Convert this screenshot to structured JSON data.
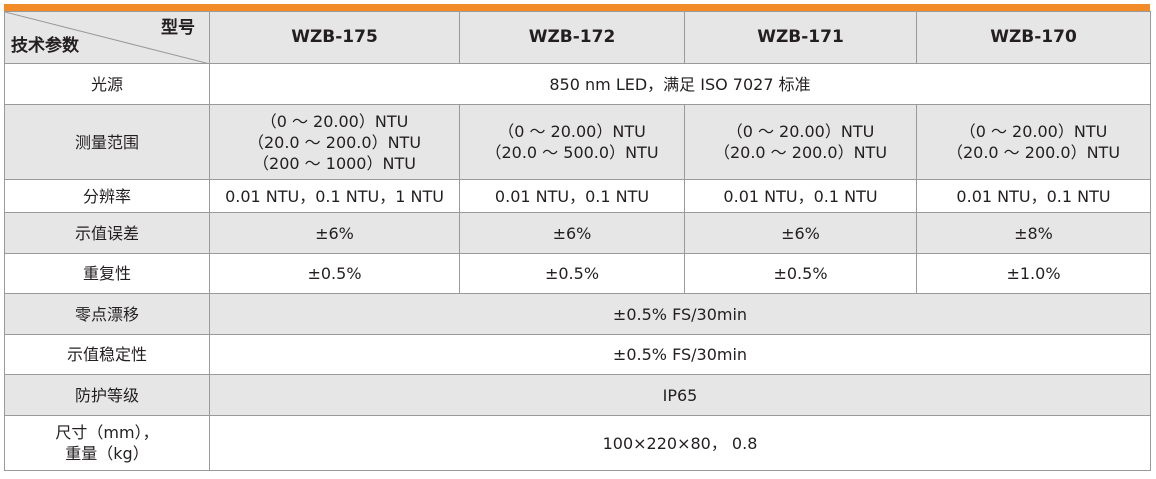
{
  "header": {
    "corner_top": "型号",
    "corner_bottom": "技术参数",
    "models": [
      "WZB-175",
      "WZB-172",
      "WZB-171",
      "WZB-170"
    ]
  },
  "rows": {
    "light": {
      "label": "光源",
      "value": "850 nm LED，满足 ISO 7027 标准"
    },
    "range": {
      "label": "测量范围",
      "values": [
        [
          "（0 ～ 20.00）NTU",
          "（20.0 ～ 200.0）NTU",
          "（200 ～ 1000）NTU"
        ],
        [
          "（0 ～ 20.00）NTU",
          "（20.0 ～ 500.0）NTU"
        ],
        [
          "（0 ～ 20.00）NTU",
          "（20.0 ～ 200.0）NTU"
        ],
        [
          "（0 ～ 20.00）NTU",
          "（20.0 ～ 200.0）NTU"
        ]
      ]
    },
    "resolution": {
      "label": "分辨率",
      "values": [
        "0.01 NTU，0.1 NTU，1 NTU",
        "0.01 NTU，0.1 NTU",
        "0.01 NTU，0.1 NTU",
        "0.01 NTU，0.1 NTU"
      ]
    },
    "error": {
      "label": "示值误差",
      "values": [
        "±6%",
        "±6%",
        "±6%",
        "±8%"
      ]
    },
    "repeat": {
      "label": "重复性",
      "values": [
        "±0.5%",
        "±0.5%",
        "±0.5%",
        "±1.0%"
      ]
    },
    "drift": {
      "label": "零点漂移",
      "value": "±0.5% FS/30min"
    },
    "stability": {
      "label": "示值稳定性",
      "value": "±0.5% FS/30min"
    },
    "protection": {
      "label": "防护等级",
      "value": "IP65"
    },
    "size": {
      "label_line1": "尺寸（mm），",
      "label_line2": "重量（kg）",
      "value": "100×220×80， 0.8"
    }
  },
  "colors": {
    "accent": "#f28c28",
    "row_shade": "#e6e6e6",
    "border": "#9a9a9a"
  }
}
